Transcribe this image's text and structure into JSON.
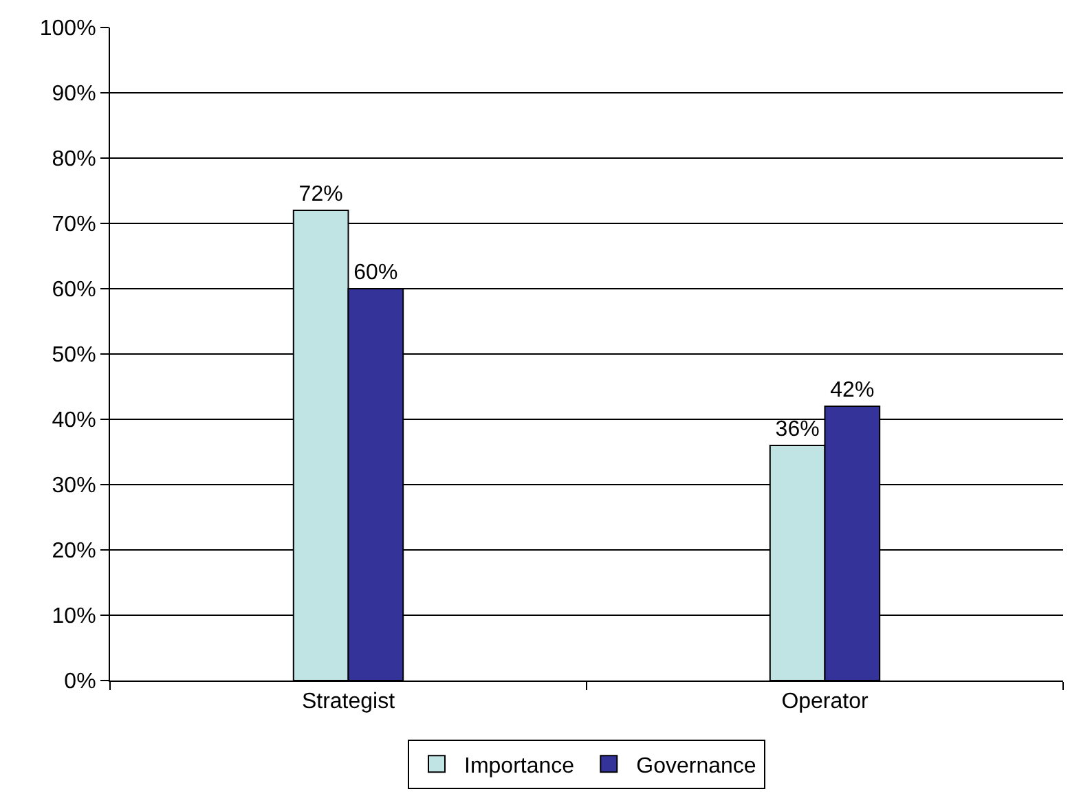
{
  "chart_data": {
    "type": "bar",
    "categories": [
      "Strategist",
      "Operator"
    ],
    "series": [
      {
        "name": "Importance",
        "color": "#c0e4e4",
        "values": [
          72,
          36
        ],
        "value_labels": [
          "72%",
          "36%"
        ]
      },
      {
        "name": "Governance",
        "color": "#333399",
        "values": [
          60,
          42
        ],
        "value_labels": [
          "60%",
          "42%"
        ]
      }
    ],
    "ylim": [
      0,
      100
    ],
    "yticks": [
      {
        "value": 0,
        "label": "0%"
      },
      {
        "value": 10,
        "label": "10%"
      },
      {
        "value": 20,
        "label": "20%"
      },
      {
        "value": 30,
        "label": "30%"
      },
      {
        "value": 40,
        "label": "40%"
      },
      {
        "value": 50,
        "label": "50%"
      },
      {
        "value": 60,
        "label": "60%"
      },
      {
        "value": 70,
        "label": "70%"
      },
      {
        "value": 80,
        "label": "80%"
      },
      {
        "value": 90,
        "label": "90%"
      },
      {
        "value": 100,
        "label": "100%"
      }
    ],
    "grid": "y",
    "legend": "bottom"
  }
}
